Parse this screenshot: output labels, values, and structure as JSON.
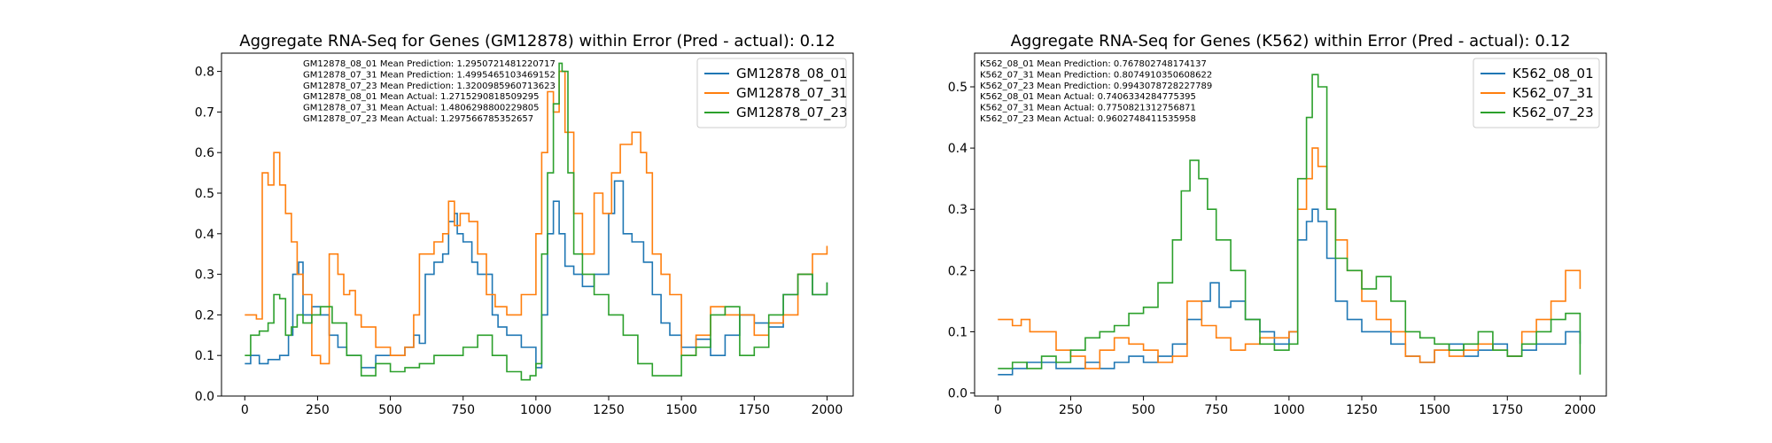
{
  "chart_data": [
    {
      "type": "line",
      "title": "Aggregate RNA-Seq for Genes (GM12878) within Error (Pred - actual): 0.12",
      "xlabel": "",
      "ylabel": "",
      "xlim": [
        -80,
        2090
      ],
      "ylim": [
        0,
        0.845
      ],
      "xticks": [
        0,
        250,
        500,
        750,
        1000,
        1250,
        1500,
        1750,
        2000
      ],
      "yticks": [
        0.0,
        0.1,
        0.2,
        0.3,
        0.4,
        0.5,
        0.6,
        0.7,
        0.8
      ],
      "legend_position": "upper right",
      "annotations": [
        "GM12878_08_01 Mean Prediction: 1.2950721481220717",
        "GM12878_07_31 Mean Prediction: 1.4995465103469152",
        "GM12878_07_23 Mean Prediction: 1.3200985960713623",
        "GM12878_08_01 Mean Actual: 1.2715290818509295",
        "GM12878_07_31 Mean Actual: 1.4806298800229805",
        "GM12878_07_23 Mean Actual: 1.297566785352657"
      ],
      "series": [
        {
          "name": "GM12878_08_01",
          "color": "#1f77b4",
          "x": [
            0,
            20,
            50,
            80,
            120,
            150,
            165,
            185,
            200,
            230,
            260,
            290,
            320,
            350,
            400,
            450,
            500,
            550,
            580,
            600,
            620,
            650,
            680,
            700,
            720,
            730,
            750,
            780,
            800,
            850,
            870,
            900,
            950,
            980,
            1000,
            1020,
            1040,
            1060,
            1080,
            1100,
            1130,
            1160,
            1200,
            1250,
            1270,
            1300,
            1330,
            1370,
            1400,
            1430,
            1460,
            1500,
            1550,
            1600,
            1650,
            1700,
            1750,
            1800,
            1850,
            1900,
            1950,
            2000
          ],
          "y": [
            0.08,
            0.1,
            0.08,
            0.09,
            0.1,
            0.15,
            0.3,
            0.33,
            0.2,
            0.22,
            0.2,
            0.15,
            0.12,
            0.1,
            0.07,
            0.1,
            0.1,
            0.12,
            0.15,
            0.13,
            0.3,
            0.33,
            0.35,
            0.43,
            0.45,
            0.4,
            0.38,
            0.33,
            0.3,
            0.2,
            0.17,
            0.15,
            0.12,
            0.12,
            0.07,
            0.2,
            0.4,
            0.48,
            0.4,
            0.32,
            0.3,
            0.27,
            0.3,
            0.45,
            0.53,
            0.4,
            0.38,
            0.33,
            0.25,
            0.18,
            0.15,
            0.12,
            0.14,
            0.1,
            0.15,
            0.2,
            0.18,
            0.17,
            0.25,
            0.3,
            0.25,
            0.28
          ]
        },
        {
          "name": "GM12878_07_31",
          "color": "#ff7f0e",
          "x": [
            0,
            20,
            40,
            60,
            80,
            100,
            120,
            140,
            160,
            180,
            200,
            230,
            260,
            290,
            320,
            340,
            360,
            380,
            400,
            450,
            500,
            550,
            580,
            600,
            650,
            680,
            700,
            720,
            740,
            770,
            800,
            830,
            860,
            900,
            950,
            1000,
            1020,
            1040,
            1060,
            1080,
            1100,
            1130,
            1160,
            1200,
            1230,
            1260,
            1290,
            1330,
            1360,
            1380,
            1400,
            1430,
            1460,
            1500,
            1550,
            1600,
            1650,
            1700,
            1750,
            1800,
            1850,
            1900,
            1950,
            2000
          ],
          "y": [
            0.2,
            0.2,
            0.19,
            0.55,
            0.52,
            0.6,
            0.52,
            0.45,
            0.38,
            0.3,
            0.25,
            0.1,
            0.08,
            0.35,
            0.3,
            0.25,
            0.26,
            0.2,
            0.17,
            0.12,
            0.1,
            0.12,
            0.2,
            0.35,
            0.38,
            0.4,
            0.48,
            0.42,
            0.45,
            0.43,
            0.35,
            0.25,
            0.22,
            0.2,
            0.25,
            0.4,
            0.6,
            0.75,
            0.7,
            0.8,
            0.65,
            0.45,
            0.35,
            0.5,
            0.45,
            0.55,
            0.62,
            0.65,
            0.6,
            0.55,
            0.35,
            0.3,
            0.25,
            0.1,
            0.15,
            0.22,
            0.2,
            0.2,
            0.15,
            0.18,
            0.2,
            0.3,
            0.35,
            0.37
          ]
        },
        {
          "name": "GM12878_07_23",
          "color": "#2ca02c",
          "x": [
            0,
            20,
            50,
            80,
            100,
            120,
            140,
            160,
            180,
            200,
            230,
            260,
            300,
            350,
            400,
            450,
            500,
            550,
            600,
            650,
            700,
            750,
            800,
            850,
            900,
            950,
            980,
            1000,
            1020,
            1040,
            1060,
            1080,
            1090,
            1110,
            1130,
            1160,
            1200,
            1250,
            1300,
            1350,
            1400,
            1450,
            1500,
            1550,
            1600,
            1650,
            1700,
            1750,
            1800,
            1850,
            1900,
            1950,
            2000
          ],
          "y": [
            0.1,
            0.15,
            0.16,
            0.18,
            0.25,
            0.24,
            0.15,
            0.17,
            0.2,
            0.18,
            0.2,
            0.22,
            0.18,
            0.1,
            0.05,
            0.08,
            0.06,
            0.07,
            0.08,
            0.1,
            0.1,
            0.12,
            0.15,
            0.1,
            0.06,
            0.04,
            0.05,
            0.08,
            0.35,
            0.55,
            0.72,
            0.82,
            0.8,
            0.55,
            0.35,
            0.3,
            0.25,
            0.2,
            0.15,
            0.08,
            0.05,
            0.05,
            0.1,
            0.12,
            0.2,
            0.22,
            0.1,
            0.12,
            0.2,
            0.25,
            0.3,
            0.25,
            0.28
          ]
        }
      ]
    },
    {
      "type": "line",
      "title": "Aggregate RNA-Seq for Genes (K562) within Error (Pred - actual): 0.12",
      "xlabel": "",
      "ylabel": "",
      "xlim": [
        -80,
        2090
      ],
      "ylim": [
        -0.005,
        0.555
      ],
      "xticks": [
        0,
        250,
        500,
        750,
        1000,
        1250,
        1500,
        1750,
        2000
      ],
      "yticks": [
        0.0,
        0.1,
        0.2,
        0.3,
        0.4,
        0.5
      ],
      "legend_position": "upper right",
      "annotations": [
        "K562_08_01 Mean Prediction: 0.767802748174137",
        "K562_07_31 Mean Prediction: 0.8074910350608622",
        "K562_07_23 Mean Prediction: 0.9943078728227789",
        "K562_08_01 Mean Actual: 0.7406334284775395",
        "K562_07_31 Mean Actual: 0.7750821312756871",
        "K562_07_23 Mean Actual: 0.9602748411535958"
      ],
      "series": [
        {
          "name": "K562_08_01",
          "color": "#1f77b4",
          "x": [
            0,
            50,
            100,
            150,
            200,
            250,
            300,
            350,
            400,
            450,
            500,
            550,
            600,
            650,
            700,
            730,
            760,
            800,
            850,
            900,
            950,
            1000,
            1030,
            1060,
            1080,
            1100,
            1130,
            1160,
            1200,
            1250,
            1300,
            1350,
            1400,
            1450,
            1500,
            1550,
            1600,
            1650,
            1700,
            1750,
            1800,
            1850,
            1900,
            1950,
            2000
          ],
          "y": [
            0.03,
            0.04,
            0.05,
            0.05,
            0.04,
            0.04,
            0.05,
            0.04,
            0.05,
            0.06,
            0.05,
            0.06,
            0.08,
            0.12,
            0.15,
            0.18,
            0.14,
            0.15,
            0.12,
            0.1,
            0.08,
            0.1,
            0.25,
            0.28,
            0.3,
            0.28,
            0.22,
            0.15,
            0.12,
            0.1,
            0.1,
            0.08,
            0.06,
            0.05,
            0.07,
            0.08,
            0.06,
            0.07,
            0.08,
            0.06,
            0.07,
            0.08,
            0.08,
            0.1,
            0.08
          ]
        },
        {
          "name": "K562_07_31",
          "color": "#ff7f0e",
          "x": [
            0,
            50,
            80,
            110,
            150,
            200,
            250,
            300,
            350,
            400,
            450,
            500,
            550,
            600,
            650,
            700,
            750,
            800,
            850,
            900,
            950,
            1000,
            1030,
            1060,
            1080,
            1100,
            1130,
            1160,
            1200,
            1250,
            1300,
            1350,
            1400,
            1450,
            1500,
            1550,
            1600,
            1650,
            1700,
            1750,
            1800,
            1850,
            1900,
            1950,
            2000
          ],
          "y": [
            0.12,
            0.11,
            0.12,
            0.1,
            0.1,
            0.07,
            0.06,
            0.04,
            0.07,
            0.09,
            0.08,
            0.07,
            0.05,
            0.06,
            0.15,
            0.11,
            0.09,
            0.07,
            0.08,
            0.09,
            0.09,
            0.1,
            0.3,
            0.35,
            0.4,
            0.37,
            0.3,
            0.25,
            0.2,
            0.15,
            0.12,
            0.1,
            0.06,
            0.05,
            0.07,
            0.06,
            0.07,
            0.08,
            0.07,
            0.06,
            0.1,
            0.12,
            0.15,
            0.2,
            0.17
          ]
        },
        {
          "name": "K562_07_23",
          "color": "#2ca02c",
          "x": [
            0,
            50,
            100,
            150,
            200,
            250,
            300,
            350,
            400,
            450,
            500,
            550,
            600,
            630,
            660,
            690,
            720,
            750,
            800,
            850,
            900,
            950,
            1000,
            1030,
            1060,
            1080,
            1100,
            1130,
            1160,
            1200,
            1250,
            1300,
            1350,
            1400,
            1450,
            1500,
            1550,
            1600,
            1650,
            1700,
            1750,
            1800,
            1850,
            1900,
            1950,
            2000
          ],
          "y": [
            0.04,
            0.05,
            0.04,
            0.06,
            0.05,
            0.07,
            0.09,
            0.1,
            0.11,
            0.13,
            0.14,
            0.18,
            0.25,
            0.33,
            0.38,
            0.35,
            0.3,
            0.25,
            0.2,
            0.12,
            0.08,
            0.07,
            0.08,
            0.35,
            0.45,
            0.52,
            0.5,
            0.3,
            0.22,
            0.2,
            0.17,
            0.19,
            0.15,
            0.1,
            0.09,
            0.08,
            0.07,
            0.08,
            0.1,
            0.07,
            0.06,
            0.08,
            0.1,
            0.12,
            0.13,
            0.03
          ]
        }
      ]
    }
  ]
}
